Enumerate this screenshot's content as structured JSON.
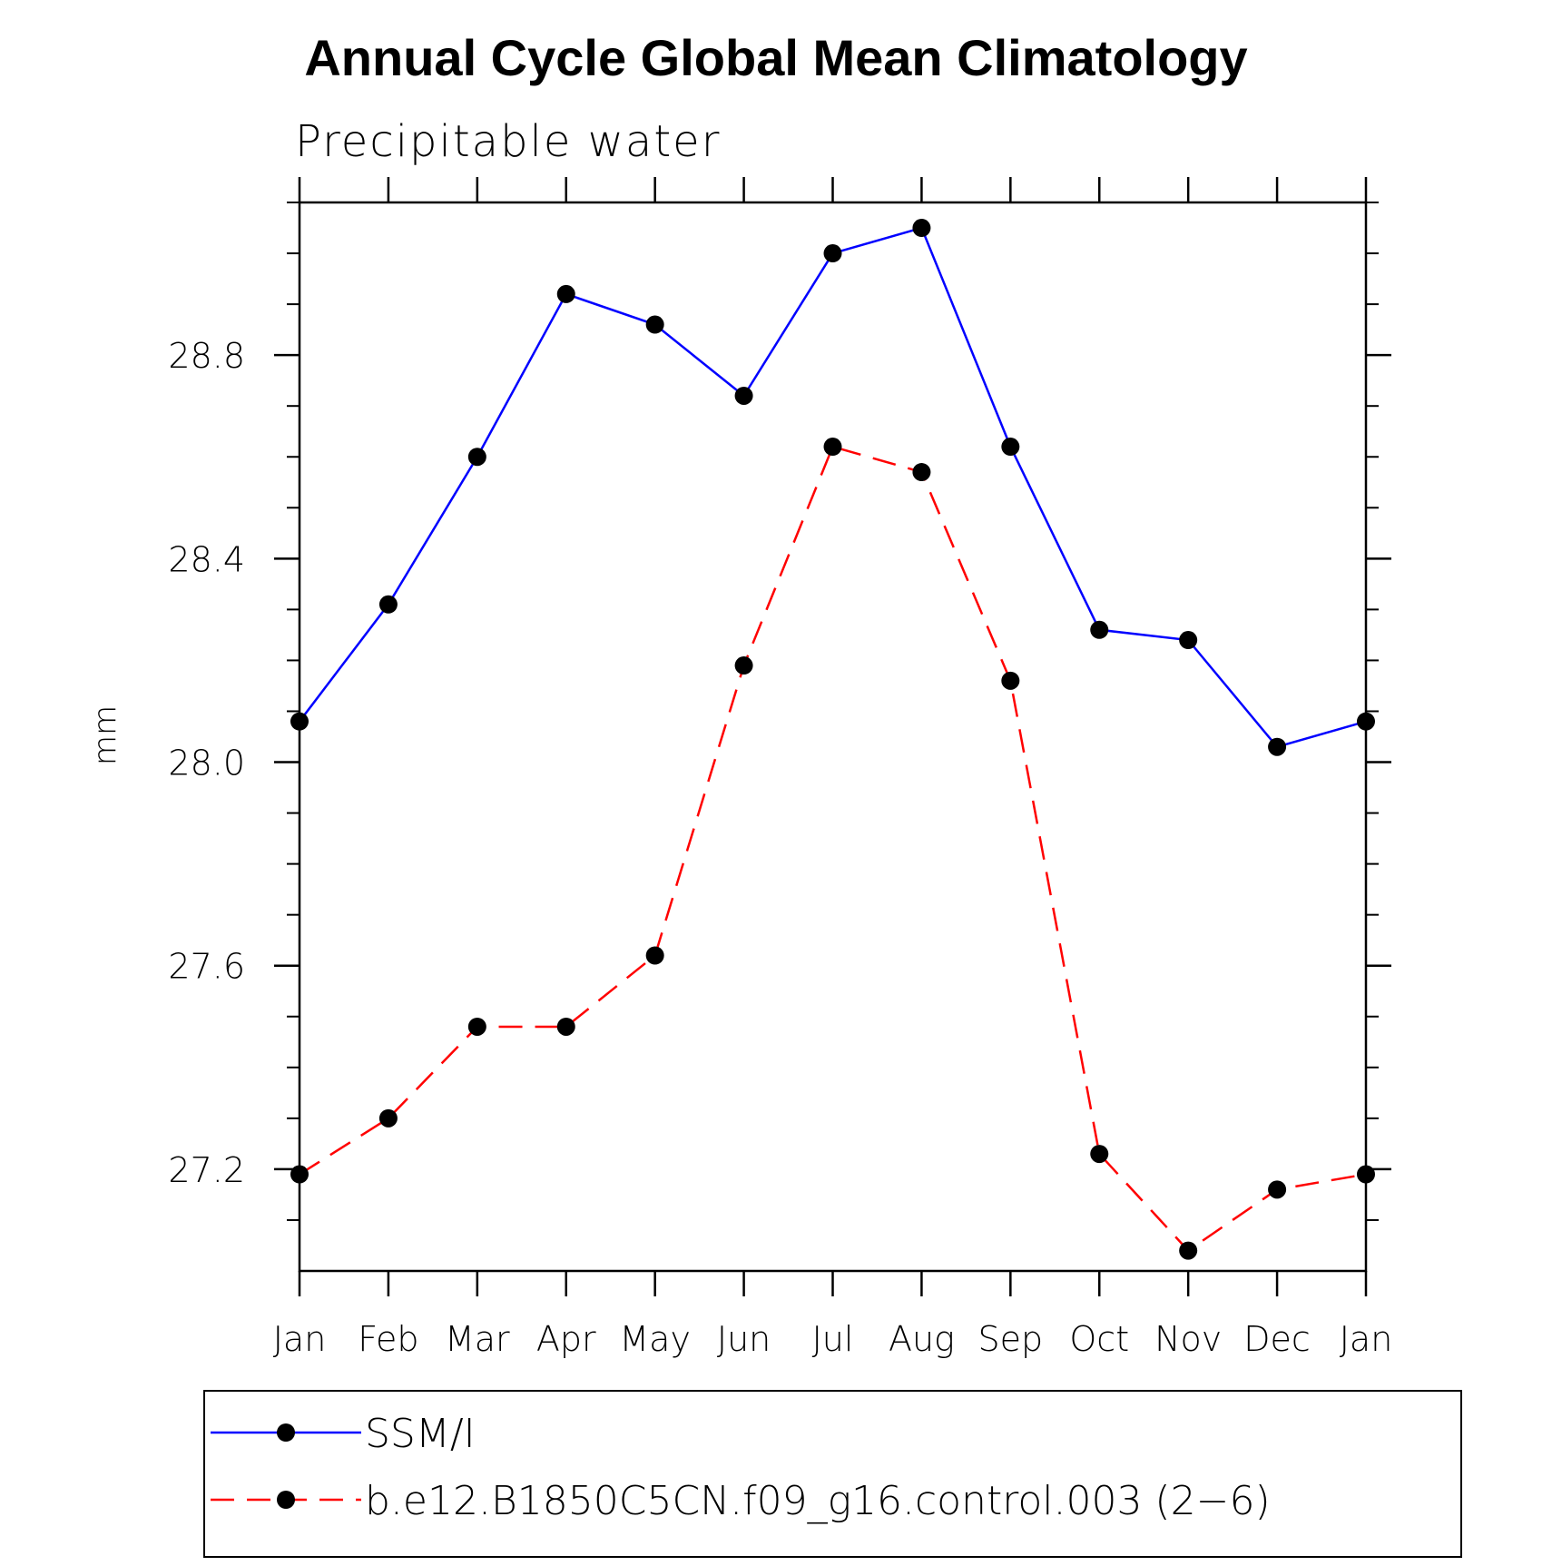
{
  "chart_data": {
    "type": "line",
    "title": "Annual Cycle Global Mean Climatology",
    "subtitle": "Precipitable water",
    "xlabel": "",
    "ylabel": "mm",
    "categories": [
      "Jan",
      "Feb",
      "Mar",
      "Apr",
      "May",
      "Jun",
      "Jul",
      "Aug",
      "Sep",
      "Oct",
      "Nov",
      "Dec",
      "Jan"
    ],
    "ylim": [
      27.0,
      29.1
    ],
    "yticks": [
      27.2,
      27.6,
      28.0,
      28.4,
      28.8
    ],
    "ytick_labels": [
      "27.2",
      "27.6",
      "28.0",
      "28.4",
      "28.8"
    ],
    "yminor_step": 0.1,
    "grid": false,
    "legend_placement": "bottom",
    "series": [
      {
        "name": "SSM/I",
        "color": "#0000ff",
        "dash": "solid",
        "marker": "filled-circle",
        "values": [
          28.08,
          28.31,
          28.6,
          28.92,
          28.86,
          28.72,
          29.0,
          29.05,
          28.62,
          28.26,
          28.24,
          28.03,
          28.08
        ]
      },
      {
        "name": "b.e12.B1850C5CN.f09_g16.control.003 (2−6)",
        "color": "#ff0000",
        "dash": "dashed",
        "marker": "filled-circle",
        "values": [
          27.19,
          27.3,
          27.48,
          27.48,
          27.62,
          28.19,
          28.62,
          28.57,
          28.16,
          27.23,
          27.04,
          27.16,
          27.19
        ]
      }
    ]
  }
}
